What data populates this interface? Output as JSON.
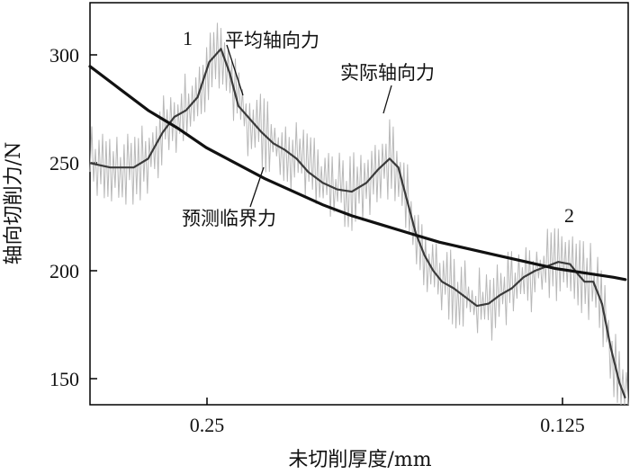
{
  "chart_data": {
    "type": "line",
    "xlabel": "未切削厚度/mm",
    "ylabel": "轴向切削力/N",
    "x_direction": "reversed (thickness decreases left to right)",
    "xlim": [
      0.295,
      0.11
    ],
    "ylim": [
      142,
      325
    ],
    "x_ticks": [
      0.25,
      0.125
    ],
    "x_tick_labels": [
      "0.25",
      "0.125"
    ],
    "y_ticks": [
      150,
      200,
      250,
      300
    ],
    "y_tick_labels": [
      "150",
      "200",
      "250",
      "300"
    ],
    "grid": false,
    "legend": "none (series labelled by annotations)",
    "annotations": [
      {
        "text": "平均轴向力",
        "target_series": "平均轴向力"
      },
      {
        "text": "实际轴向力",
        "target_series": "实际轴向力"
      },
      {
        "text": "预测临界力",
        "target_series": "预测临界力"
      },
      {
        "text": "1",
        "near": [
          0.249,
          305
        ]
      },
      {
        "text": "2",
        "near": [
          0.122,
          210
        ]
      }
    ],
    "colors": {
      "actual": "#b8b8b8",
      "average": "#3a3a3a",
      "predicted": "#111111"
    },
    "series": [
      {
        "name": "平均轴向力",
        "style": "medium dark line",
        "x": [
          0.295,
          0.288,
          0.28,
          0.275,
          0.27,
          0.266,
          0.262,
          0.258,
          0.254,
          0.25,
          0.247,
          0.244,
          0.24,
          0.236,
          0.232,
          0.228,
          0.224,
          0.22,
          0.215,
          0.21,
          0.205,
          0.2,
          0.196,
          0.192,
          0.189,
          0.186,
          0.183,
          0.18,
          0.177,
          0.174,
          0.17,
          0.166,
          0.162,
          0.158,
          0.154,
          0.15,
          0.146,
          0.142,
          0.138,
          0.134,
          0.13,
          0.127,
          0.125,
          0.122,
          0.119,
          0.116,
          0.113,
          0.111
        ],
        "y": [
          252,
          250,
          250,
          254,
          266,
          273,
          276,
          282,
          298,
          304,
          293,
          278,
          272,
          266,
          261,
          258,
          254,
          248,
          243,
          240,
          239,
          243,
          249,
          254,
          250,
          235,
          220,
          210,
          203,
          198,
          195,
          191,
          187,
          188,
          192,
          195,
          200,
          203,
          205,
          207,
          206,
          201,
          198,
          198,
          188,
          168,
          152,
          145
        ]
      },
      {
        "name": "实际轴向力",
        "style": "light gray noisy line"
      },
      {
        "name": "预测临界力",
        "style": "thick black curve",
        "x": [
          0.295,
          0.285,
          0.275,
          0.265,
          0.255,
          0.245,
          0.235,
          0.225,
          0.215,
          0.205,
          0.195,
          0.185,
          0.175,
          0.165,
          0.155,
          0.145,
          0.135,
          0.125,
          0.115,
          0.111
        ],
        "y": [
          296,
          286,
          276,
          268,
          259,
          252,
          245,
          239,
          233,
          228,
          224,
          220,
          216,
          213,
          210,
          207,
          204,
          202,
          200,
          199
        ]
      }
    ]
  }
}
